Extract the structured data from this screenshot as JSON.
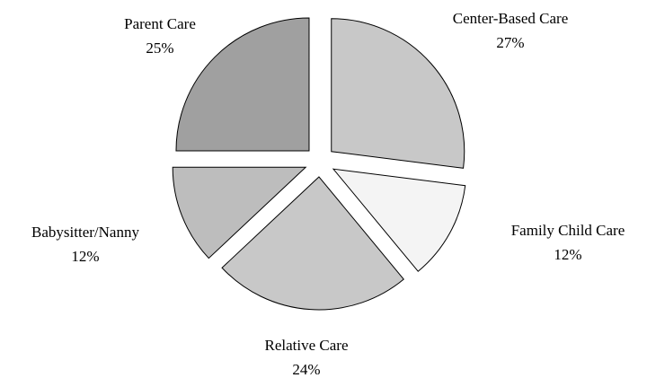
{
  "chart_data": {
    "type": "pie",
    "categories": [
      "Center-Based Care",
      "Family Child Care",
      "Relative Care",
      "Babysitter/Nanny",
      "Parent Care"
    ],
    "values": [
      27,
      12,
      24,
      12,
      25
    ],
    "value_labels": [
      "27%",
      "12%",
      "24%",
      "12%",
      "25%"
    ],
    "colors": [
      "#c8c8c8",
      "#f4f4f4",
      "#c8c8c8",
      "#bdbdbd",
      "#a0a0a0"
    ]
  }
}
